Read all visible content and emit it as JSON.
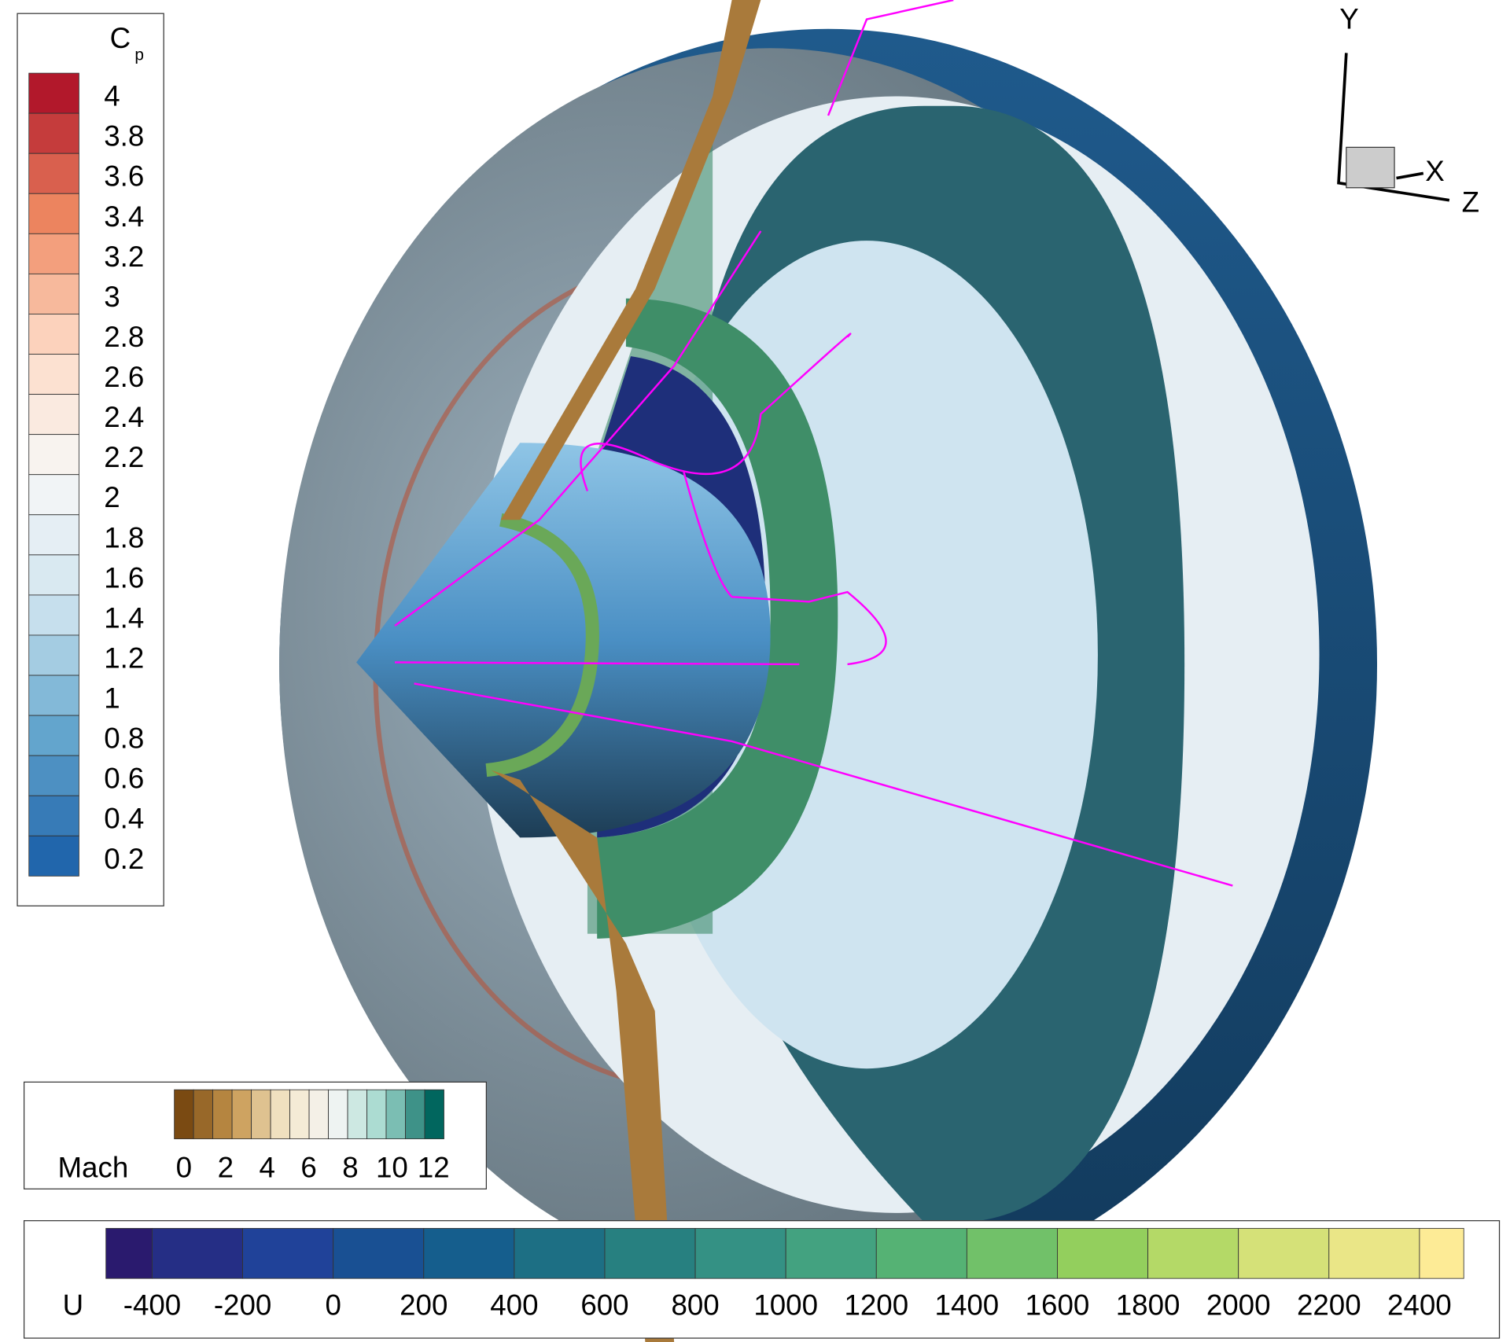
{
  "cp_legend": {
    "title": "C",
    "subscript": "p",
    "labels": [
      4,
      3.8,
      3.6,
      3.4,
      3.2,
      3,
      2.8,
      2.6,
      2.4,
      2.2,
      2,
      1.8,
      1.6,
      1.4,
      1.2,
      1,
      0.8,
      0.6,
      0.4,
      0.2
    ]
  },
  "mach_legend": {
    "title": "Mach",
    "labels": [
      0,
      2,
      4,
      6,
      8,
      10,
      12
    ]
  },
  "u_legend": {
    "title": "U",
    "labels": [
      -400,
      -200,
      0,
      200,
      400,
      600,
      800,
      1000,
      1200,
      1400,
      1600,
      1800,
      2000,
      2200,
      2400
    ]
  },
  "axes": {
    "y": "Y",
    "x": "X",
    "z": "Z"
  }
}
